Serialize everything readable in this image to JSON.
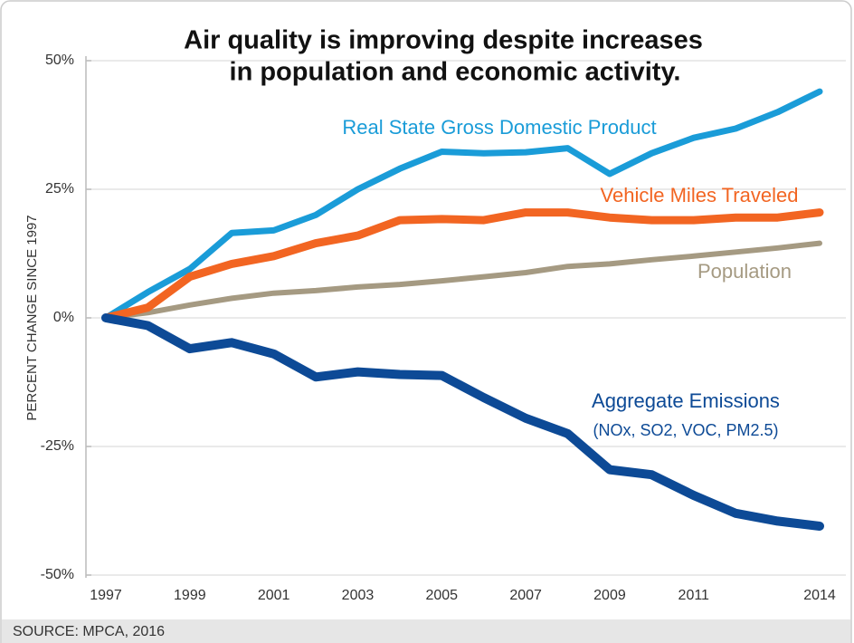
{
  "chart_data": {
    "type": "line",
    "title": [
      "Air quality is improving despite increases",
      "in population and economic activity."
    ],
    "y_label": "PERCENT CHANGE SINCE 1997",
    "source": "SOURCE: MPCA, 2016",
    "x": [
      1997,
      1998,
      1999,
      2000,
      2001,
      2002,
      2003,
      2004,
      2005,
      2006,
      2007,
      2008,
      2009,
      2010,
      2011,
      2012,
      2013,
      2014
    ],
    "xlim": [
      1997,
      2014
    ],
    "xticks": [
      1997,
      1999,
      2001,
      2003,
      2005,
      2007,
      2009,
      2011,
      2014
    ],
    "ylim": [
      -50,
      50
    ],
    "yticks": [
      {
        "value": -50,
        "label": "-50%"
      },
      {
        "value": -25,
        "label": "-25%"
      },
      {
        "value": 0,
        "label": "0%"
      },
      {
        "value": 25,
        "label": "25%"
      },
      {
        "value": 50,
        "label": "50%"
      }
    ],
    "grid": true,
    "series": [
      {
        "name": "Real State Gross Domestic Product",
        "color": "#1a9cd8",
        "values": [
          0,
          5,
          9.5,
          16.5,
          17,
          20,
          25,
          29,
          32.3,
          32,
          32.2,
          33,
          28,
          32,
          35,
          36.8,
          40,
          44
        ]
      },
      {
        "name": "Vehicle Miles Traveled",
        "color": "#f26522",
        "values": [
          0,
          2,
          8,
          10.5,
          12,
          14.5,
          16,
          19,
          19.2,
          19,
          20.5,
          20.5,
          19.5,
          19,
          19,
          19.5,
          19.5,
          20.5
        ]
      },
      {
        "name": "Population",
        "color": "#a59a82",
        "values": [
          0,
          1,
          2.5,
          3.8,
          4.8,
          5.3,
          6,
          6.5,
          7.2,
          8,
          8.8,
          10,
          10.5,
          11.3,
          12,
          12.8,
          13.6,
          14.5
        ]
      },
      {
        "name": "Aggregate Emissions",
        "color": "#0d4a96",
        "note": "(NOx, SO2, VOC, PM2.5)",
        "values": [
          0,
          -1.5,
          -6,
          -4.8,
          -7,
          -11.5,
          -10.5,
          -11,
          -11.2,
          -15.5,
          -19.5,
          -22.5,
          -29.5,
          -30.5,
          -34.5,
          -38,
          -39.5,
          -40.5
        ]
      }
    ]
  }
}
